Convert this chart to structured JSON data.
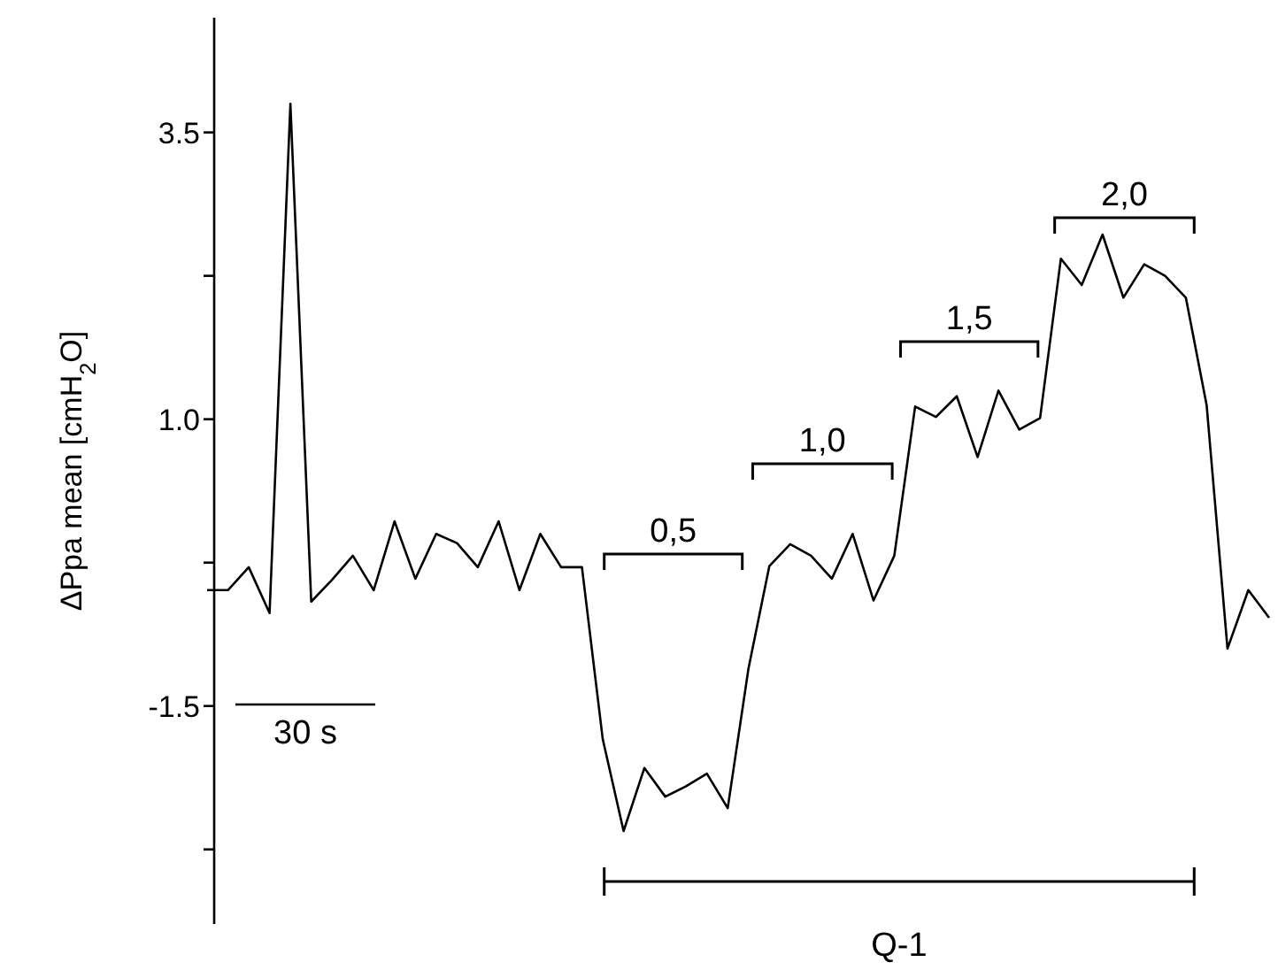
{
  "chart_data": {
    "type": "line",
    "ylabel": "ΔPpa mean [cmH$_{2}$O]",
    "categories": [
      null,
      null,
      null,
      null,
      null,
      null,
      null,
      null,
      null,
      null,
      null,
      null,
      null,
      null,
      null,
      null,
      null,
      null,
      null,
      null,
      null,
      null,
      null,
      null,
      null,
      null,
      null,
      null,
      null,
      null,
      null,
      null,
      null,
      null,
      null,
      null,
      null,
      null,
      null,
      null,
      null,
      null,
      null,
      null,
      null,
      null,
      null,
      null,
      null,
      null,
      null,
      null
    ],
    "series": [
      {
        "color": "#000000",
        "values": [
          -0.49,
          -0.49,
          -0.29,
          -0.69,
          3.75,
          -0.59,
          -0.4,
          -0.19,
          -0.49,
          0.11,
          -0.39,
          0.0,
          -0.08,
          -0.29,
          0.11,
          -0.49,
          0.0,
          -0.29,
          -0.29,
          -1.79,
          -2.59,
          -2.04,
          -2.29,
          -2.2,
          -2.09,
          -2.39,
          -1.17,
          -0.28,
          -0.09,
          -0.19,
          -0.39,
          0.0,
          -0.58,
          -0.19,
          1.11,
          1.02,
          1.2,
          0.67,
          1.25,
          0.91,
          1.01,
          2.4,
          2.17,
          2.61,
          2.06,
          2.35,
          2.25,
          2.06,
          1.12,
          -1.0,
          -0.49,
          -0.73
        ]
      }
    ],
    "ylim": [
      -3.4,
      4.5
    ],
    "yticks": [
      3.5,
      {
        "value": 2.25,
        "label": null
      },
      {
        "value": 1.0,
        "label": "1.0"
      },
      {
        "value": -0.25,
        "label": null
      },
      -1.5,
      {
        "value": -2.75,
        "label": null
      }
    ],
    "marker": "none",
    "line_style": "solid",
    "grid": false,
    "annotations": [
      "30 s",
      "0,5",
      "1,0",
      "1,5",
      "2,0",
      "Q-1"
    ]
  }
}
